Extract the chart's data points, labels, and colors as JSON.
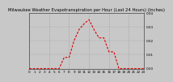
{
  "title": "Milwaukee Weather Evapotranspiration per Hour (Last 24 Hours) (Inches)",
  "hours": [
    0,
    1,
    2,
    3,
    4,
    5,
    6,
    7,
    8,
    9,
    10,
    11,
    12,
    13,
    14,
    15,
    16,
    17,
    18,
    19,
    20,
    21,
    22,
    23
  ],
  "values": [
    0,
    0,
    0,
    0,
    0,
    0,
    0,
    0.008,
    0.008,
    0.02,
    0.028,
    0.032,
    0.035,
    0.028,
    0.022,
    0.022,
    0.012,
    0.012,
    0,
    0,
    0,
    0,
    0,
    0
  ],
  "line_color": "#dd0000",
  "bg_color": "#c8c8c8",
  "plot_bg": "#c8c8c8",
  "grid_color": "#888888",
  "ylim": [
    0,
    0.04
  ],
  "ytick_values": [
    0.0,
    0.01,
    0.02,
    0.03,
    0.04
  ],
  "ytick_labels": [
    "0.00",
    "0.01",
    "0.02",
    "0.03",
    "0.04"
  ],
  "xticks": [
    0,
    1,
    2,
    3,
    4,
    5,
    6,
    7,
    8,
    9,
    10,
    11,
    12,
    13,
    14,
    15,
    16,
    17,
    18,
    19,
    20,
    21,
    22,
    23
  ],
  "title_fontsize": 3.8,
  "tick_fontsize": 3.0,
  "line_width": 0.8
}
